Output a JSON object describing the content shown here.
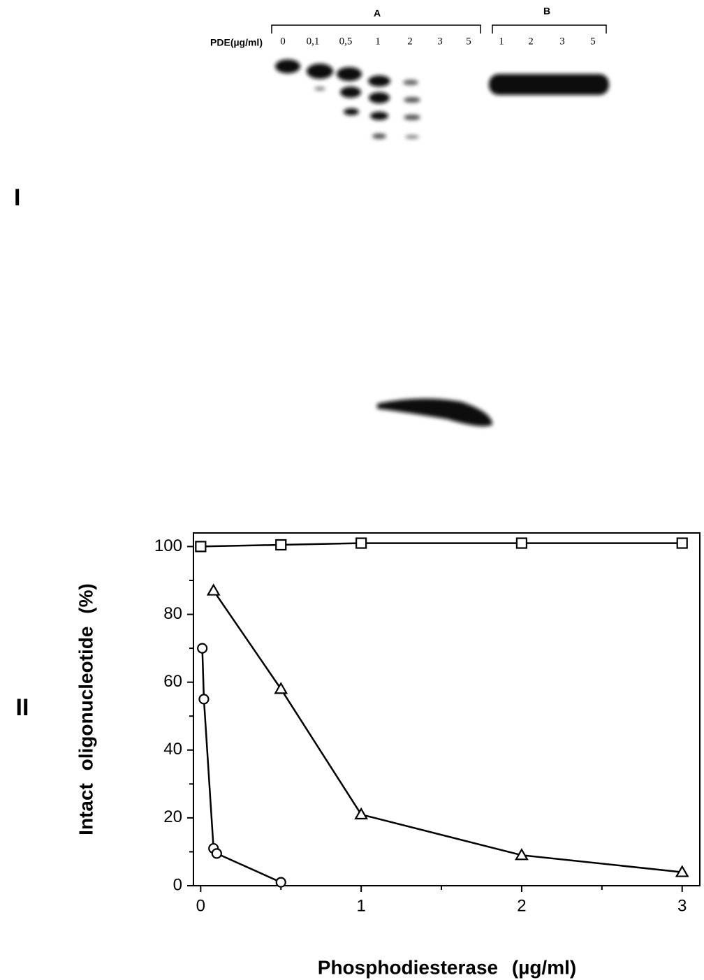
{
  "gel": {
    "panel_label": "I",
    "group_a": "A",
    "group_b": "B",
    "row_label": "PDE(µg/ml)",
    "lanes_a": [
      "0",
      "0,1",
      "0,5",
      "1",
      "2",
      "3",
      "5"
    ],
    "lanes_b": [
      "1",
      "2",
      "3",
      "5"
    ]
  },
  "chart_data": {
    "type": "line",
    "panel_label": "II",
    "x_label": "Phosphodiesterase (µg/ml)",
    "y_label": "Intact oligonucleotide (%)",
    "xlim": [
      -0.045,
      3.11
    ],
    "ylim": [
      0,
      104
    ],
    "xticks": [
      0,
      1,
      2,
      3
    ],
    "xminor_ticks": [
      0.5,
      1.5,
      2.5
    ],
    "yticks": [
      0,
      20,
      40,
      60,
      80,
      100
    ],
    "yminor_ticks": [
      10,
      30,
      50,
      70,
      90
    ],
    "series": [
      {
        "marker": "square",
        "color": "#000000",
        "x": [
          0,
          0.5,
          1,
          2,
          3
        ],
        "values": [
          100,
          100.5,
          101,
          101,
          101
        ]
      },
      {
        "marker": "triangle",
        "color": "#000000",
        "x": [
          0.08,
          0.5,
          1,
          2,
          3
        ],
        "values": [
          87,
          58,
          21,
          9,
          4
        ]
      },
      {
        "marker": "circle",
        "color": "#000000",
        "x": [
          0.01,
          0.02,
          0.08,
          0.1,
          0.5
        ],
        "values": [
          70,
          55,
          11,
          9.5,
          1
        ]
      }
    ]
  }
}
